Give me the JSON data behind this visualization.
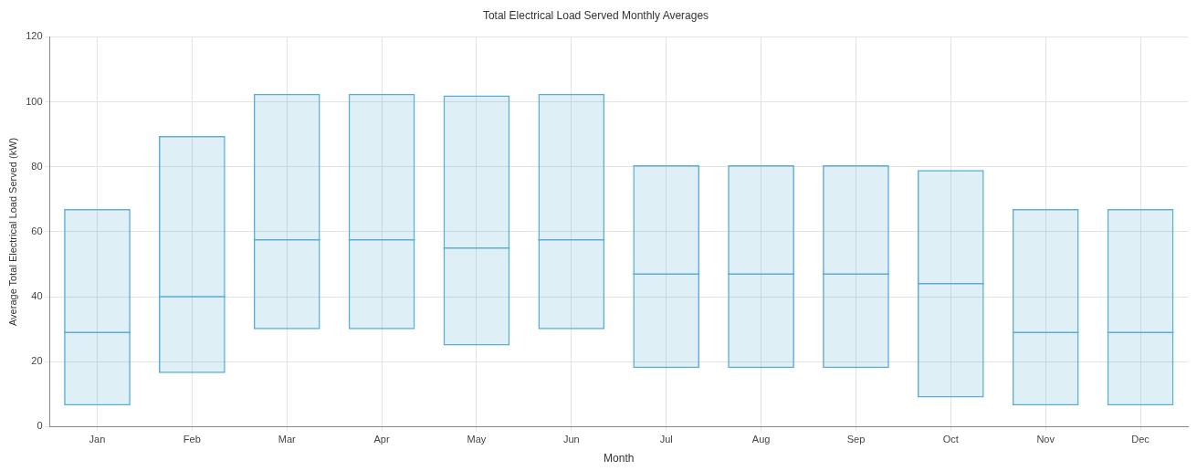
{
  "chart_data": {
    "type": "box",
    "title": "Total Electrical Load Served Monthly Averages",
    "xlabel": "Month",
    "ylabel": "Average Total Electrical Load Served (kW)",
    "categories": [
      "Jan",
      "Feb",
      "Mar",
      "Apr",
      "May",
      "Jun",
      "Jul",
      "Aug",
      "Sep",
      "Oct",
      "Nov",
      "Dec"
    ],
    "color": "#5aaed4",
    "boxes": [
      {
        "low": 6.5,
        "q1": 6.5,
        "median": 29,
        "q3": 67,
        "high": 67
      },
      {
        "low": 16.5,
        "q1": 16.5,
        "median": 40,
        "q3": 89.5,
        "high": 89.5
      },
      {
        "low": 30,
        "q1": 30,
        "median": 57.5,
        "q3": 102.5,
        "high": 102.5
      },
      {
        "low": 30,
        "q1": 30,
        "median": 57.5,
        "q3": 102.5,
        "high": 102.5
      },
      {
        "low": 25,
        "q1": 25,
        "median": 55,
        "q3": 102,
        "high": 102
      },
      {
        "low": 30,
        "q1": 30,
        "median": 57.5,
        "q3": 102.5,
        "high": 102.5
      },
      {
        "low": 18,
        "q1": 18,
        "median": 47,
        "q3": 80.5,
        "high": 80.5
      },
      {
        "low": 18,
        "q1": 18,
        "median": 47,
        "q3": 80.5,
        "high": 80.5
      },
      {
        "low": 18,
        "q1": 18,
        "median": 47,
        "q3": 80.5,
        "high": 80.5
      },
      {
        "low": 9,
        "q1": 9,
        "median": 44,
        "q3": 79,
        "high": 79
      },
      {
        "low": 6.5,
        "q1": 6.5,
        "median": 29,
        "q3": 67,
        "high": 67
      },
      {
        "low": 6.5,
        "q1": 6.5,
        "median": 29,
        "q3": 67,
        "high": 67
      }
    ],
    "ylim": [
      0,
      120
    ],
    "yticks": [
      0,
      20,
      40,
      60,
      80,
      100,
      120
    ],
    "grid": true
  }
}
